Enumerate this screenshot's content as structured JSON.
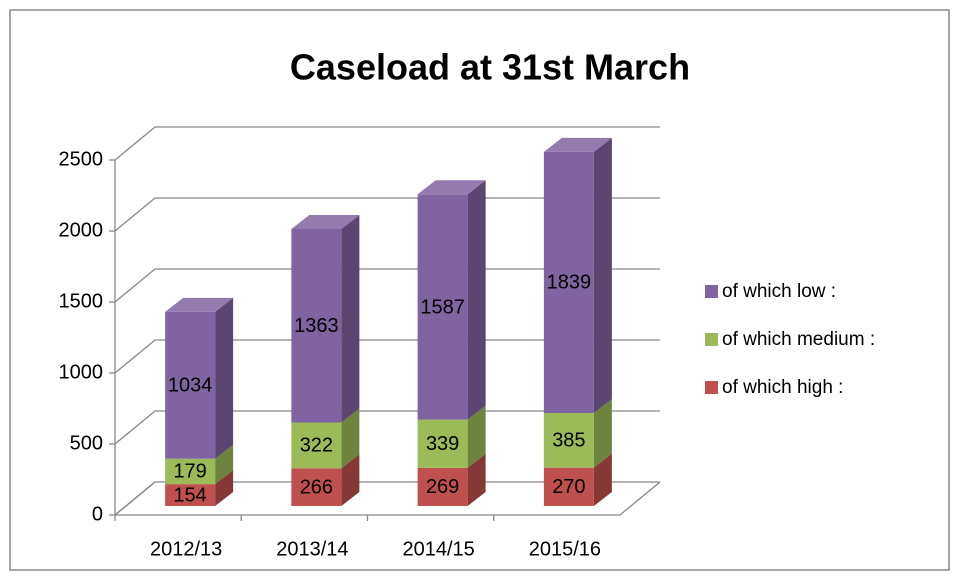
{
  "chart_data": {
    "type": "bar3d_stacked",
    "title": "Caseload at 31st March",
    "categories": [
      "2012/13",
      "2013/14",
      "2014/15",
      "2015/16"
    ],
    "series": [
      {
        "name": "of which high :",
        "color": "#c0504d",
        "values": [
          154,
          266,
          269,
          270
        ]
      },
      {
        "name": "of which medium :",
        "color": "#9bbb59",
        "values": [
          179,
          322,
          339,
          385
        ]
      },
      {
        "name": "of which low :",
        "color": "#8064a2",
        "values": [
          1034,
          1363,
          1587,
          1839
        ]
      }
    ],
    "ylim": [
      0,
      2500
    ],
    "yticks": [
      0,
      500,
      1000,
      1500,
      2000,
      2500
    ],
    "grid": true,
    "legend": "right"
  }
}
